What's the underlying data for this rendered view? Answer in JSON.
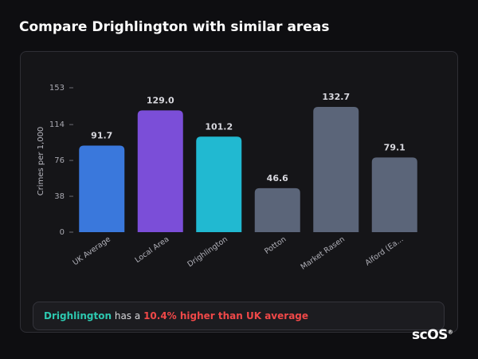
{
  "title": "Compare Drighlington with similar areas",
  "chart_data": {
    "type": "bar",
    "y_label": "Crimes per 1,000",
    "categories": [
      "UK Average",
      "Local Area",
      "Drighlington",
      "Potton",
      "Market Rasen",
      "Alford (Ea..."
    ],
    "values": [
      91.7,
      129.0,
      101.2,
      46.6,
      132.7,
      79.1
    ],
    "value_labels": [
      "91.7",
      "129.0",
      "101.2",
      "46.6",
      "132.7",
      "79.1"
    ],
    "colors": [
      "#3a78dc",
      "#7b4ed8",
      "#21b9d1",
      "#5b6579",
      "#5b6579",
      "#5b6579"
    ],
    "ylim": [
      0,
      153
    ],
    "yticks": [
      0,
      38,
      76,
      114,
      153
    ]
  },
  "callout": {
    "area": "Drighlington",
    "text": "has a",
    "comparison": "10.4% higher than UK average"
  },
  "logo": {
    "text": "scOS",
    "mark": "®"
  }
}
